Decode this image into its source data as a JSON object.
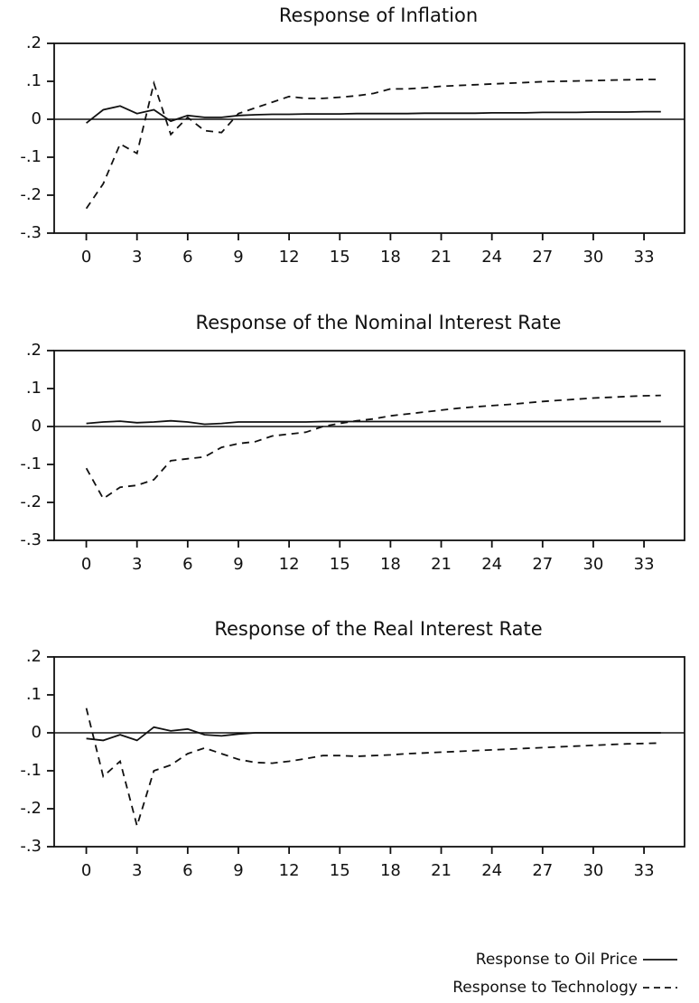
{
  "chart_data": [
    {
      "type": "line",
      "title": "Response of Inflation",
      "x": [
        0,
        1,
        2,
        3,
        4,
        5,
        6,
        7,
        8,
        9,
        10,
        11,
        12,
        13,
        14,
        15,
        16,
        17,
        18,
        19,
        20,
        21,
        22,
        23,
        24,
        25,
        26,
        27,
        28,
        29,
        30,
        31,
        32,
        33,
        34
      ],
      "xlim": [
        -1.9,
        35.4
      ],
      "xticks": [
        0,
        3,
        6,
        9,
        12,
        15,
        18,
        21,
        24,
        27,
        30,
        33
      ],
      "ylim": [
        -0.3,
        0.2
      ],
      "yticks": [
        {
          "value": -0.3,
          "label": "-.3"
        },
        {
          "value": -0.2,
          "label": "-.2"
        },
        {
          "value": -0.1,
          "label": "-.1"
        },
        0,
        {
          "value": 0.1,
          "label": ".1"
        },
        {
          "value": 0.2,
          "label": ".2"
        }
      ],
      "series": [
        {
          "name": "Response to Oil Price",
          "color": "#111111",
          "style": "solid",
          "values": [
            -0.01,
            0.025,
            0.035,
            0.015,
            0.025,
            -0.005,
            0.01,
            0.005,
            0.005,
            0.01,
            0.012,
            0.013,
            0.013,
            0.014,
            0.014,
            0.014,
            0.015,
            0.015,
            0.015,
            0.015,
            0.016,
            0.016,
            0.016,
            0.016,
            0.017,
            0.017,
            0.017,
            0.018,
            0.018,
            0.018,
            0.019,
            0.019,
            0.019,
            0.02,
            0.02
          ]
        },
        {
          "name": "Response to Technology",
          "color": "#111111",
          "style": "dashed",
          "values": [
            -0.235,
            -0.17,
            -0.065,
            -0.09,
            0.095,
            -0.04,
            0.005,
            -0.03,
            -0.035,
            0.015,
            0.03,
            0.045,
            0.06,
            0.055,
            0.055,
            0.058,
            0.062,
            0.068,
            0.08,
            0.08,
            0.083,
            0.087,
            0.089,
            0.091,
            0.093,
            0.095,
            0.097,
            0.099,
            0.1,
            0.101,
            0.102,
            0.103,
            0.104,
            0.105,
            0.105
          ]
        }
      ]
    },
    {
      "type": "line",
      "title": "Response of the Nominal Interest Rate",
      "x": [
        0,
        1,
        2,
        3,
        4,
        5,
        6,
        7,
        8,
        9,
        10,
        11,
        12,
        13,
        14,
        15,
        16,
        17,
        18,
        19,
        20,
        21,
        22,
        23,
        24,
        25,
        26,
        27,
        28,
        29,
        30,
        31,
        32,
        33,
        34
      ],
      "xlim": [
        -1.9,
        35.4
      ],
      "xticks": [
        0,
        3,
        6,
        9,
        12,
        15,
        18,
        21,
        24,
        27,
        30,
        33
      ],
      "ylim": [
        -0.3,
        0.2
      ],
      "yticks": [
        {
          "value": -0.3,
          "label": "-.3"
        },
        {
          "value": -0.2,
          "label": "-.2"
        },
        {
          "value": -0.1,
          "label": "-.1"
        },
        0,
        {
          "value": 0.1,
          "label": ".1"
        },
        {
          "value": 0.2,
          "label": ".2"
        }
      ],
      "series": [
        {
          "color": "#111111",
          "style": "solid",
          "values": [
            0.008,
            0.012,
            0.014,
            0.01,
            0.012,
            0.015,
            0.012,
            0.006,
            0.008,
            0.012,
            0.012,
            0.012,
            0.012,
            0.012,
            0.013,
            0.013,
            0.013,
            0.013,
            0.013,
            0.013,
            0.013,
            0.013,
            0.013,
            0.013,
            0.013,
            0.013,
            0.013,
            0.013,
            0.013,
            0.013,
            0.013,
            0.013,
            0.013,
            0.013,
            0.013
          ]
        },
        {
          "color": "#111111",
          "style": "dashed",
          "values": [
            -0.11,
            -0.19,
            -0.16,
            -0.155,
            -0.14,
            -0.09,
            -0.085,
            -0.08,
            -0.055,
            -0.045,
            -0.04,
            -0.025,
            -0.02,
            -0.015,
            0,
            0.008,
            0.015,
            0.02,
            0.028,
            0.033,
            0.038,
            0.043,
            0.048,
            0.052,
            0.055,
            0.058,
            0.062,
            0.066,
            0.069,
            0.072,
            0.075,
            0.077,
            0.079,
            0.081,
            0.082
          ]
        }
      ]
    },
    {
      "type": "line",
      "title": "Response of the Real Interest Rate",
      "x": [
        0,
        1,
        2,
        3,
        4,
        5,
        6,
        7,
        8,
        9,
        10,
        11,
        12,
        13,
        14,
        15,
        16,
        17,
        18,
        19,
        20,
        21,
        22,
        23,
        24,
        25,
        26,
        27,
        28,
        29,
        30,
        31,
        32,
        33,
        34
      ],
      "xlim": [
        -1.9,
        35.4
      ],
      "xticks": [
        0,
        3,
        6,
        9,
        12,
        15,
        18,
        21,
        24,
        27,
        30,
        33
      ],
      "ylim": [
        -0.3,
        0.2
      ],
      "yticks": [
        {
          "value": -0.3,
          "label": "-.3"
        },
        {
          "value": -0.2,
          "label": "-.2"
        },
        {
          "value": -0.1,
          "label": "-.1"
        },
        0,
        {
          "value": 0.1,
          "label": ".1"
        },
        {
          "value": 0.2,
          "label": ".2"
        }
      ],
      "series": [
        {
          "color": "#111111",
          "style": "solid",
          "values": [
            -0.015,
            -0.02,
            -0.005,
            -0.02,
            0.015,
            0.005,
            0.01,
            -0.005,
            -0.008,
            -0.003,
            0,
            0,
            0,
            0,
            0,
            0,
            0,
            0,
            0,
            0,
            0,
            0,
            0,
            0,
            0,
            0,
            0,
            0,
            0,
            0,
            0,
            0,
            0,
            0,
            0
          ]
        },
        {
          "color": "#111111",
          "style": "dashed",
          "values": [
            0.065,
            -0.115,
            -0.075,
            -0.245,
            -0.1,
            -0.085,
            -0.055,
            -0.04,
            -0.055,
            -0.07,
            -0.078,
            -0.08,
            -0.075,
            -0.068,
            -0.06,
            -0.06,
            -0.062,
            -0.06,
            -0.058,
            -0.055,
            -0.053,
            -0.051,
            -0.049,
            -0.047,
            -0.045,
            -0.043,
            -0.041,
            -0.039,
            -0.037,
            -0.035,
            -0.033,
            -0.031,
            -0.029,
            -0.028,
            -0.027
          ]
        }
      ]
    }
  ]
}
